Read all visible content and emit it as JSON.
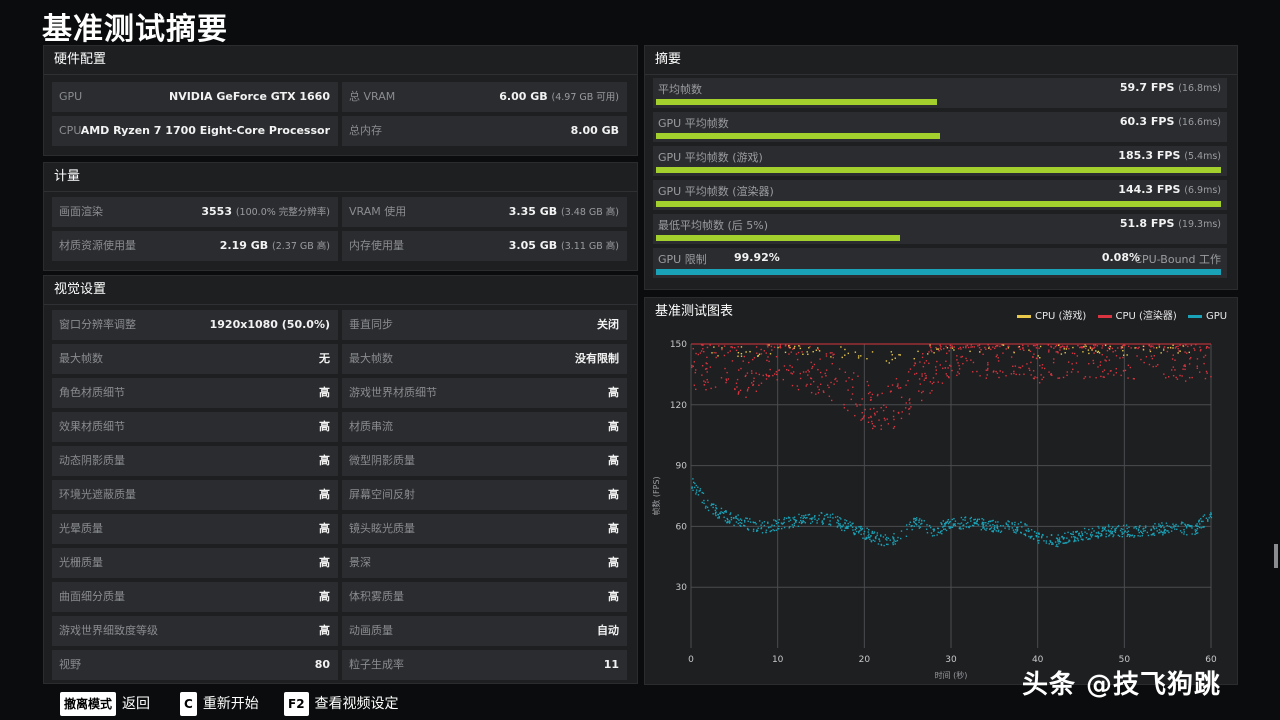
{
  "title": "基准测试摘要",
  "hardware": {
    "header": "硬件配置",
    "rows": [
      [
        {
          "label": "GPU",
          "value": "NVIDIA GeForce GTX 1660",
          "sub": ""
        },
        {
          "label": "总 VRAM",
          "value": "6.00 GB",
          "sub": "(4.97 GB 可用)"
        }
      ],
      [
        {
          "label": "CPU",
          "value": "AMD Ryzen 7 1700 Eight-Core Processor",
          "sub": ""
        },
        {
          "label": "总内存",
          "value": "8.00 GB",
          "sub": ""
        }
      ]
    ]
  },
  "metrics": {
    "header": "计量",
    "rows": [
      [
        {
          "label": "画面渲染",
          "value": "3553",
          "sub": "(100.0% 完整分辨率)"
        },
        {
          "label": "VRAM 使用",
          "value": "3.35 GB",
          "sub": "(3.48 GB 高)"
        }
      ],
      [
        {
          "label": "材质资源使用量",
          "value": "2.19 GB",
          "sub": "(2.37 GB 高)"
        },
        {
          "label": "内存使用量",
          "value": "3.05 GB",
          "sub": "(3.11 GB 高)"
        }
      ]
    ]
  },
  "visual": {
    "header": "视觉设置",
    "rows": [
      [
        {
          "label": "窗口分辨率调整",
          "value": "1920x1080 (50.0%)"
        },
        {
          "label": "垂直同步",
          "value": "关闭"
        }
      ],
      [
        {
          "label": "最大帧数",
          "value": "无"
        },
        {
          "label": "最大帧数",
          "value": "没有限制"
        }
      ],
      [
        {
          "label": "角色材质细节",
          "value": "高"
        },
        {
          "label": "游戏世界材质细节",
          "value": "高"
        }
      ],
      [
        {
          "label": "效果材质细节",
          "value": "高"
        },
        {
          "label": "材质串流",
          "value": "高"
        }
      ],
      [
        {
          "label": "动态阴影质量",
          "value": "高"
        },
        {
          "label": "微型阴影质量",
          "value": "高"
        }
      ],
      [
        {
          "label": "环境光遮蔽质量",
          "value": "高"
        },
        {
          "label": "屏幕空间反射",
          "value": "高"
        }
      ],
      [
        {
          "label": "光晕质量",
          "value": "高"
        },
        {
          "label": "镜头眩光质量",
          "value": "高"
        }
      ],
      [
        {
          "label": "光栅质量",
          "value": "高"
        },
        {
          "label": "景深",
          "value": "高"
        }
      ],
      [
        {
          "label": "曲面细分质量",
          "value": "高"
        },
        {
          "label": "体积雾质量",
          "value": "高"
        }
      ],
      [
        {
          "label": "游戏世界细致度等级",
          "value": "高"
        },
        {
          "label": "动画质量",
          "value": "自动"
        }
      ],
      [
        {
          "label": "视野",
          "value": "80"
        },
        {
          "label": "粒子生成率",
          "value": "11"
        }
      ]
    ]
  },
  "summary": {
    "header": "摘要",
    "rows": [
      {
        "label": "平均帧数",
        "value": "59.7 FPS",
        "sub": "(16.8ms)",
        "fill": 0.497
      },
      {
        "label": "GPU 平均帧数",
        "value": "60.3 FPS",
        "sub": "(16.6ms)",
        "fill": 0.502
      },
      {
        "label": "GPU 平均帧数 (游戏)",
        "value": "185.3 FPS",
        "sub": "(5.4ms)",
        "fill": 1.0
      },
      {
        "label": "GPU 平均帧数 (渲染器)",
        "value": "144.3 FPS",
        "sub": "(6.9ms)",
        "fill": 1.0
      },
      {
        "label": "最低平均帧数 (后 5%)",
        "value": "51.8 FPS",
        "sub": "(19.3ms)",
        "fill": 0.431
      }
    ],
    "gpu_bound": {
      "label": "GPU 限制",
      "value": "99.92%",
      "right": "0.08%",
      "right_label": "CPU-Bound 工作",
      "fill": 0.9992
    }
  },
  "chart_panel": {
    "header": "基准测试图表",
    "legend": [
      {
        "name": "CPU (游戏)",
        "color": "#e8c84a"
      },
      {
        "name": "CPU (渲染器)",
        "color": "#d9343f"
      },
      {
        "name": "GPU",
        "color": "#1aa3b8"
      }
    ]
  },
  "chart_data": {
    "type": "scatter",
    "xlabel": "时间 (秒)",
    "ylabel": "帧数 (FPS)",
    "xlim": [
      0,
      60
    ],
    "ylim": [
      0,
      150
    ],
    "xticks": [
      0,
      10,
      20,
      30,
      40,
      50,
      60
    ],
    "yticks": [
      30,
      60,
      90,
      120,
      150
    ],
    "grid": true,
    "legend_position": "top-right",
    "series": [
      {
        "name": "GPU",
        "color": "#1aa3b8",
        "x": [
          0,
          2,
          4,
          6,
          8,
          10,
          12,
          14,
          16,
          18,
          20,
          22,
          24,
          26,
          28,
          30,
          32,
          34,
          36,
          38,
          40,
          42,
          44,
          46,
          48,
          50,
          52,
          54,
          56,
          58,
          60
        ],
        "y": [
          82,
          70,
          65,
          62,
          60,
          61,
          63,
          65,
          64,
          60,
          57,
          53,
          55,
          63,
          58,
          62,
          62,
          61,
          60,
          60,
          55,
          53,
          55,
          57,
          58,
          58,
          58,
          59,
          60,
          58,
          67
        ]
      },
      {
        "name": "CPU (渲染器)",
        "color": "#d9343f",
        "x": [
          0,
          2,
          4,
          6,
          8,
          10,
          12,
          14,
          16,
          18,
          20,
          22,
          24,
          26,
          28,
          30,
          32,
          34,
          36,
          38,
          40,
          42,
          44,
          46,
          48,
          50,
          52,
          54,
          56,
          58,
          60
        ],
        "y": [
          140,
          138,
          142,
          135,
          140,
          145,
          140,
          138,
          135,
          128,
          122,
          118,
          122,
          132,
          140,
          146,
          148,
          145,
          146,
          145,
          143,
          145,
          146,
          144,
          146,
          145,
          144,
          146,
          145,
          143,
          146
        ]
      },
      {
        "name": "CPU (游戏)",
        "color": "#e8c84a",
        "x": [
          2,
          6,
          10,
          16,
          22,
          28,
          32,
          36,
          40,
          44,
          48,
          52,
          56,
          58
        ],
        "y": [
          148,
          146,
          149,
          147,
          143,
          148,
          149,
          148,
          146,
          149,
          148,
          147,
          149,
          148
        ]
      }
    ]
  },
  "footer": [
    {
      "key": "撤离模式",
      "label": "返回"
    },
    {
      "key": "C",
      "label": "重新开始"
    },
    {
      "key": "F2",
      "label": "查看视频设定"
    }
  ],
  "watermark": "头条 @技飞狗跳"
}
